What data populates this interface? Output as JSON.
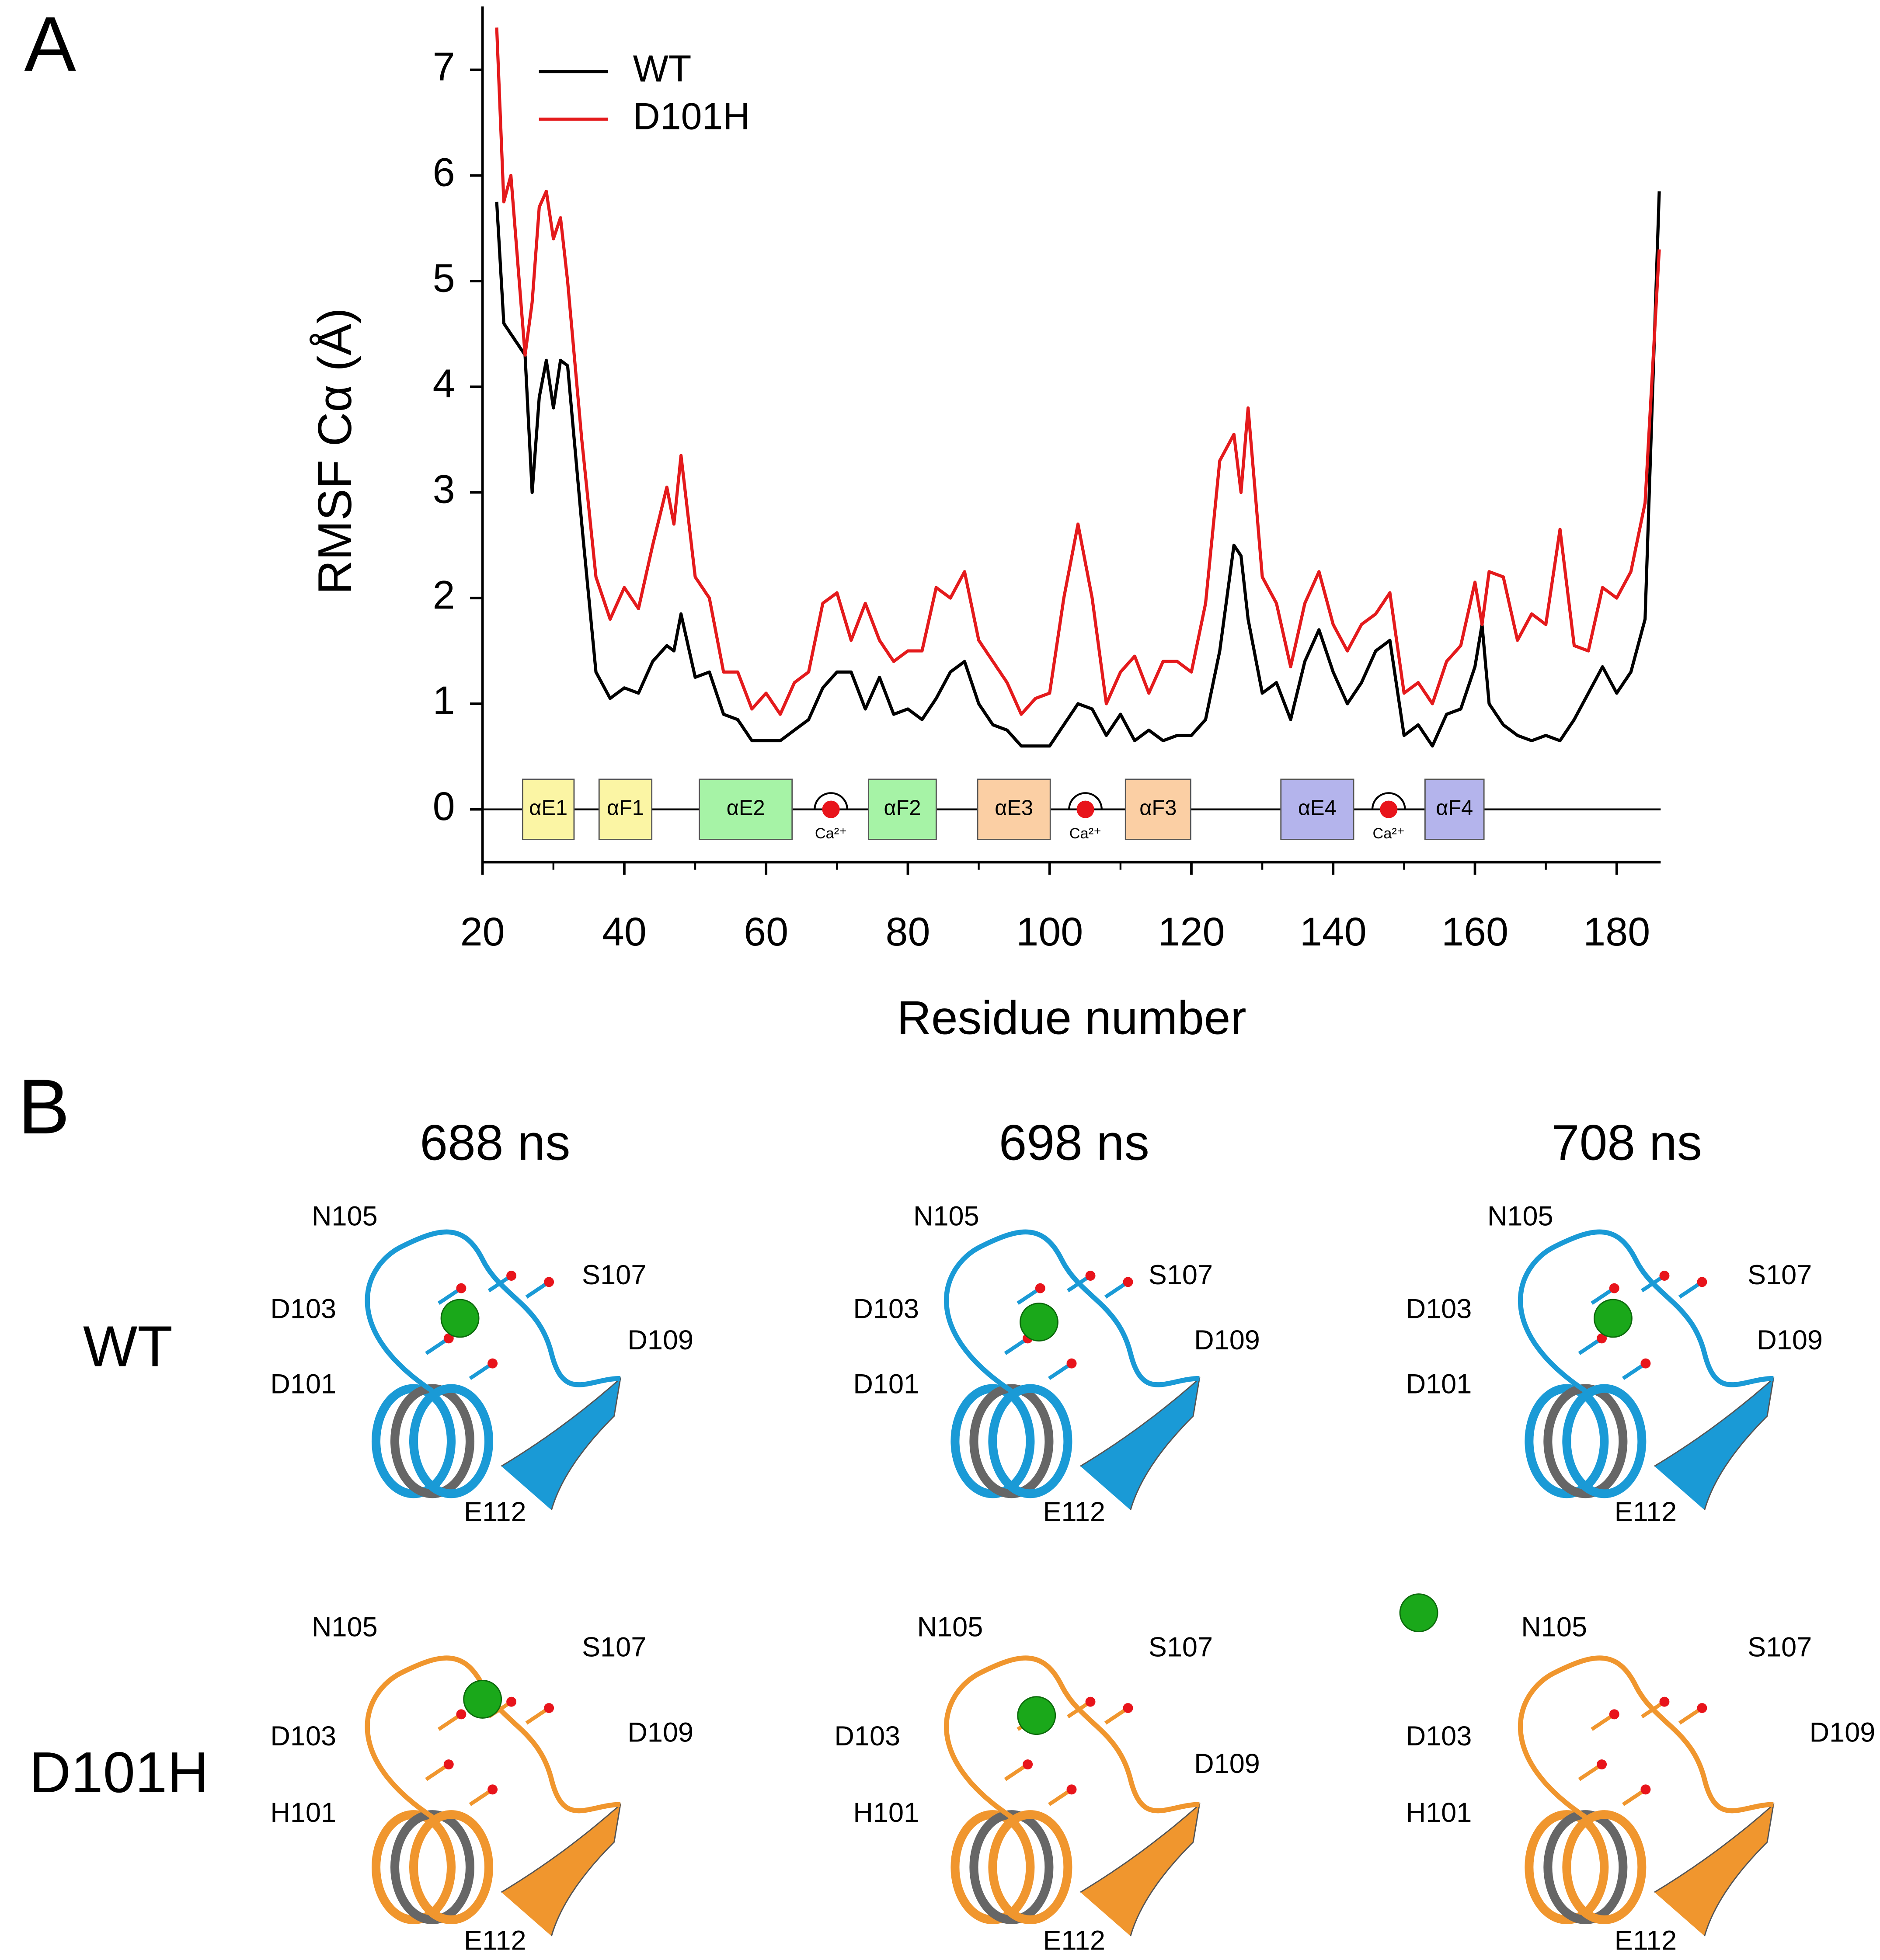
{
  "chart_data": {
    "type": "line",
    "panel_label": "A",
    "x_label": "Residue number",
    "y_label": "RMSF Cα (Å)",
    "xlim": [
      20,
      186.2
    ],
    "ylim": [
      -0.5,
      7.6
    ],
    "xticks": [
      20,
      40,
      60,
      80,
      100,
      120,
      140,
      160,
      180
    ],
    "yticks": [
      0,
      1,
      2,
      3,
      4,
      5,
      6,
      7
    ],
    "legend": "upper left",
    "x": [
      22,
      23,
      24,
      26,
      27,
      28,
      29,
      30,
      31,
      32,
      34,
      36,
      38,
      40,
      42,
      44,
      46,
      47,
      48,
      50,
      52,
      54,
      56,
      58,
      60,
      62,
      64,
      66,
      68,
      70,
      72,
      74,
      76,
      78,
      80,
      82,
      84,
      86,
      88,
      90,
      92,
      94,
      96,
      98,
      100,
      102,
      104,
      106,
      108,
      110,
      112,
      114,
      116,
      118,
      120,
      122,
      124,
      126,
      127,
      128,
      130,
      132,
      134,
      136,
      138,
      140,
      142,
      144,
      146,
      148,
      150,
      152,
      154,
      156,
      158,
      160,
      161,
      162,
      164,
      166,
      168,
      170,
      172,
      174,
      176,
      178,
      180,
      182,
      184,
      186
    ],
    "series": [
      {
        "name": "WT",
        "color": "#000000",
        "values": [
          5.75,
          4.6,
          4.5,
          4.3,
          3.0,
          3.9,
          4.25,
          3.8,
          4.25,
          4.2,
          2.7,
          1.3,
          1.05,
          1.15,
          1.1,
          1.4,
          1.55,
          1.5,
          1.85,
          1.25,
          1.3,
          0.9,
          0.85,
          0.65,
          0.65,
          0.65,
          0.75,
          0.85,
          1.15,
          1.3,
          1.3,
          0.95,
          1.25,
          0.9,
          0.95,
          0.85,
          1.05,
          1.3,
          1.4,
          1.0,
          0.8,
          0.75,
          0.6,
          0.6,
          0.6,
          0.8,
          1.0,
          0.95,
          0.7,
          0.9,
          0.65,
          0.75,
          0.65,
          0.7,
          0.7,
          0.85,
          1.5,
          2.5,
          2.4,
          1.8,
          1.1,
          1.2,
          0.85,
          1.4,
          1.7,
          1.3,
          1.0,
          1.2,
          1.5,
          1.6,
          0.7,
          0.8,
          0.6,
          0.9,
          0.95,
          1.35,
          1.75,
          1.0,
          0.8,
          0.7,
          0.65,
          0.7,
          0.65,
          0.85,
          1.1,
          1.35,
          1.1,
          1.3,
          1.8,
          5.85
        ]
      },
      {
        "name": "D101H",
        "color": "#e41a1c",
        "values": [
          7.4,
          5.75,
          6.0,
          4.3,
          4.8,
          5.7,
          5.85,
          5.4,
          5.6,
          5.0,
          3.5,
          2.2,
          1.8,
          2.1,
          1.9,
          2.5,
          3.05,
          2.7,
          3.35,
          2.2,
          2.0,
          1.3,
          1.3,
          0.95,
          1.1,
          0.9,
          1.2,
          1.3,
          1.95,
          2.05,
          1.6,
          1.95,
          1.6,
          1.4,
          1.5,
          1.5,
          2.1,
          2.0,
          2.25,
          1.6,
          1.4,
          1.2,
          0.9,
          1.05,
          1.1,
          2.0,
          2.7,
          2.0,
          1.0,
          1.3,
          1.45,
          1.1,
          1.4,
          1.4,
          1.3,
          1.95,
          3.3,
          3.55,
          3.0,
          3.8,
          2.2,
          1.95,
          1.35,
          1.95,
          2.25,
          1.75,
          1.5,
          1.75,
          1.85,
          2.05,
          1.1,
          1.2,
          1.0,
          1.4,
          1.55,
          2.15,
          1.75,
          2.25,
          2.2,
          1.6,
          1.85,
          1.75,
          2.65,
          1.55,
          1.5,
          2.1,
          2.0,
          2.25,
          2.9,
          5.3
        ]
      }
    ],
    "domains": [
      "αE1",
      "αF1",
      "αE2",
      "αF2",
      "αE3",
      "αF3",
      "αE4",
      "αF4"
    ],
    "calcium_label": "Ca²⁺"
  },
  "panel_b": {
    "label": "B",
    "columns": [
      "688 ns",
      "698 ns",
      "708 ns"
    ],
    "rows": [
      {
        "label": "WT",
        "residues": [
          [
            "N105",
            "D103",
            "S107",
            "D109",
            "D101",
            "E112"
          ],
          [
            "N105",
            "D103",
            "S107",
            "D109",
            "D101",
            "E112"
          ],
          [
            "N105",
            "D103",
            "S107",
            "D109",
            "D101",
            "E112"
          ]
        ]
      },
      {
        "label": "D101H",
        "residues": [
          [
            "N105",
            "S107",
            "D103",
            "D109",
            "H101",
            "E112"
          ],
          [
            "N105",
            "S107",
            "D103",
            "D109",
            "H101",
            "E112"
          ],
          [
            "N105",
            "S107",
            "D103",
            "D109",
            "H101",
            "E112"
          ]
        ]
      }
    ]
  }
}
